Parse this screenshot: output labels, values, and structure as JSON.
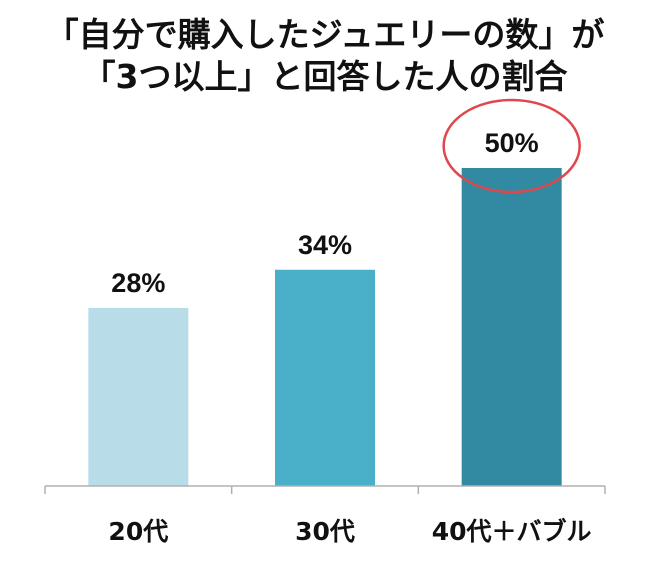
{
  "title": {
    "line1": "「自分で購入したジュエリーの数」が",
    "line2": "「3つ以上」と回答した人の割合"
  },
  "chart_data": {
    "type": "bar",
    "categories": [
      "20代",
      "30代",
      "40代＋バブル"
    ],
    "values": [
      28,
      34,
      50
    ],
    "value_labels": [
      "28%",
      "34%",
      "50%"
    ],
    "unit": "%",
    "ylim": [
      0,
      50
    ],
    "grid": false,
    "legend": "none",
    "colors": [
      "#b8dde8",
      "#4aafc8",
      "#318aa1"
    ],
    "highlight_color": "#e0474c",
    "highlight_category": "40代＋バブル"
  }
}
